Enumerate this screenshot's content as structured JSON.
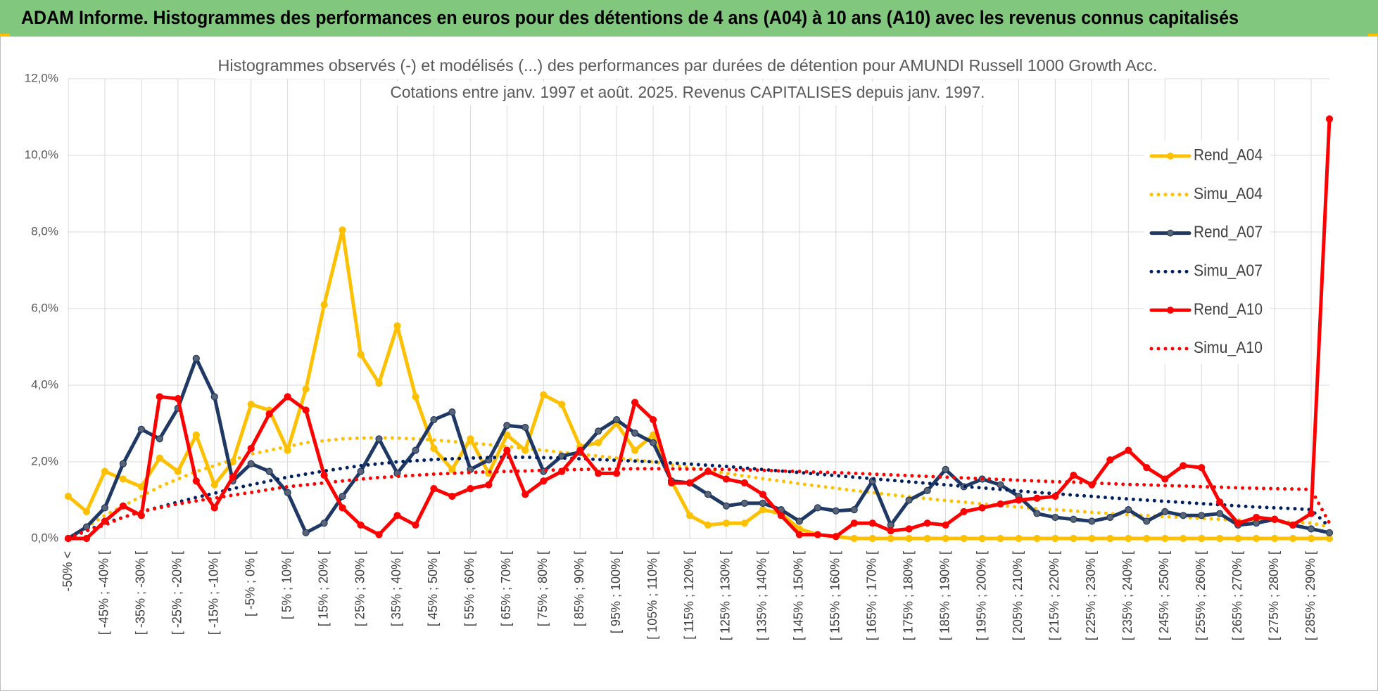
{
  "header": {
    "title": "ADAM Informe. Histogrammes des performances en euros pour des détentions de 4 ans (A04) à 10 ans (A10) avec les revenus connus capitalisés"
  },
  "chart_data": {
    "type": "line",
    "title": "Histogrammes observés (-) et modélisés (...) des performances par durées de détention pour AMUNDI Russell 1000 Growth Acc.",
    "subtitle": "Cotations entre janv. 1997 et août. 2025. Revenus CAPITALISES depuis janv. 1997.",
    "categories": [
      "-50% <",
      null,
      "[ -45% ; -40% [",
      null,
      "[ -35% ; -30% [",
      null,
      "[ -25% ; -20% [",
      null,
      "[ -15% ; -10% [",
      null,
      "[ -5% ; 0% [",
      null,
      "[ 5% ; 10% [",
      null,
      "[ 15% ; 20% [",
      null,
      "[ 25% ; 30% [",
      null,
      "[ 35% ; 40% [",
      null,
      "[ 45% ; 50% [",
      null,
      "[ 55% ; 60% [",
      null,
      "[ 65% ; 70% [",
      null,
      "[ 75% ; 80% [",
      null,
      "[ 85% ; 90% [",
      null,
      "[ 95% ; 100% [",
      null,
      "[ 105% ; 110% [",
      null,
      "[ 115% ; 120% [",
      null,
      "[ 125% ; 130% [",
      null,
      "[ 135% ; 140% [",
      null,
      "[ 145% ; 150% [",
      null,
      "[ 155% ; 160% [",
      null,
      "[ 165% ; 170% [",
      null,
      "[ 175% ; 180% [",
      null,
      "[ 185% ; 190% [",
      null,
      "[ 195% ; 200% [",
      null,
      "[ 205% ; 210% [",
      null,
      "[ 215% ; 220% [",
      null,
      "[ 225% ; 230% [",
      null,
      "[ 235% ; 240% [",
      null,
      "[ 245% ; 250% [",
      null,
      "[ 255% ; 260% [",
      null,
      "[ 265% ; 270% [",
      null,
      "[ 275% ; 280% [",
      null,
      "[ 285% ; 290% [",
      null
    ],
    "ylim": [
      0,
      12
    ],
    "yticks": [
      {
        "value": 0,
        "label": "0,0%"
      },
      {
        "value": 2,
        "label": "2,0%"
      },
      {
        "value": 4,
        "label": "4,0%"
      },
      {
        "value": 6,
        "label": "6,0%"
      },
      {
        "value": 8,
        "label": "8,0%"
      },
      {
        "value": 10,
        "label": "10,0%"
      },
      {
        "value": 12,
        "label": "12,0%"
      }
    ],
    "grid": true,
    "legend": "right",
    "series": [
      {
        "name": "Rend_A04",
        "color": "#FFC000",
        "marker_color": "#FFC000",
        "style": "solid",
        "markers": true,
        "values": [
          1.1,
          0.7,
          1.75,
          1.55,
          1.35,
          2.1,
          1.75,
          2.7,
          1.4,
          2.0,
          3.5,
          3.35,
          2.3,
          3.9,
          6.1,
          8.05,
          4.8,
          4.05,
          5.55,
          3.7,
          2.35,
          1.8,
          2.6,
          1.7,
          2.7,
          2.3,
          3.75,
          3.5,
          2.4,
          2.5,
          3.0,
          2.3,
          2.7,
          1.5,
          0.6,
          0.35,
          0.4,
          0.4,
          0.75,
          0.65,
          0.25,
          0.1,
          0.05,
          0,
          0,
          0,
          0,
          0,
          0,
          0,
          0,
          0,
          0,
          0,
          0,
          0,
          0,
          0,
          0,
          0,
          0,
          0,
          0,
          0,
          0,
          0,
          0,
          0,
          0,
          0
        ]
      },
      {
        "name": "Simu_A04",
        "color": "#FFC000",
        "style": "dotted",
        "markers": false,
        "values": [
          0,
          0.3,
          0.6,
          0.85,
          1.1,
          1.35,
          1.55,
          1.75,
          1.9,
          2.05,
          2.2,
          2.3,
          2.4,
          2.5,
          2.55,
          2.6,
          2.62,
          2.63,
          2.62,
          2.6,
          2.57,
          2.53,
          2.49,
          2.45,
          2.4,
          2.35,
          2.3,
          2.25,
          2.2,
          2.15,
          2.1,
          2.05,
          2.0,
          1.92,
          1.85,
          1.78,
          1.7,
          1.63,
          1.56,
          1.5,
          1.43,
          1.37,
          1.31,
          1.25,
          1.2,
          1.14,
          1.09,
          1.04,
          0.99,
          0.95,
          0.9,
          0.86,
          0.82,
          0.78,
          0.75,
          0.72,
          0.68,
          0.65,
          0.62,
          0.6,
          0.57,
          0.55,
          0.52,
          0.5,
          0.48,
          0.46,
          0.44,
          0.42,
          0.4,
          0.3
        ]
      },
      {
        "name": "Rend_A07",
        "color": "#1F3864",
        "marker_color": "#5A6472",
        "style": "solid",
        "markers": true,
        "values": [
          0,
          0.3,
          0.8,
          1.95,
          2.85,
          2.6,
          3.4,
          4.7,
          3.7,
          1.5,
          1.95,
          1.75,
          1.2,
          0.15,
          0.4,
          1.1,
          1.75,
          2.6,
          1.7,
          2.3,
          3.1,
          3.3,
          1.8,
          2.05,
          2.95,
          2.9,
          1.75,
          2.15,
          2.25,
          2.8,
          3.1,
          2.75,
          2.5,
          1.5,
          1.45,
          1.15,
          0.85,
          0.92,
          0.92,
          0.75,
          0.45,
          0.8,
          0.72,
          0.75,
          1.5,
          0.35,
          1.0,
          1.25,
          1.8,
          1.35,
          1.55,
          1.4,
          1.1,
          0.65,
          0.55,
          0.5,
          0.45,
          0.55,
          0.75,
          0.45,
          0.7,
          0.6,
          0.6,
          0.65,
          0.35,
          0.4,
          0.5,
          0.35,
          0.25,
          0.15
        ]
      },
      {
        "name": "Simu_A07",
        "color": "#002060",
        "style": "dotted",
        "markers": false,
        "values": [
          0,
          0.2,
          0.4,
          0.55,
          0.7,
          0.82,
          0.95,
          1.07,
          1.18,
          1.3,
          1.4,
          1.5,
          1.6,
          1.68,
          1.76,
          1.83,
          1.9,
          1.95,
          2.0,
          2.03,
          2.06,
          2.08,
          2.1,
          2.11,
          2.12,
          2.12,
          2.11,
          2.1,
          2.08,
          2.06,
          2.04,
          2.02,
          2.0,
          1.97,
          1.94,
          1.91,
          1.88,
          1.84,
          1.8,
          1.76,
          1.72,
          1.68,
          1.64,
          1.6,
          1.56,
          1.52,
          1.48,
          1.44,
          1.4,
          1.36,
          1.32,
          1.28,
          1.24,
          1.2,
          1.17,
          1.13,
          1.1,
          1.06,
          1.03,
          1.0,
          0.97,
          0.94,
          0.91,
          0.88,
          0.85,
          0.82,
          0.8,
          0.78,
          0.75,
          0.3
        ]
      },
      {
        "name": "Rend_A10",
        "color": "#FF0000",
        "marker_color": "#FF0000",
        "style": "solid",
        "markers": true,
        "values": [
          0,
          0,
          0.45,
          0.85,
          0.6,
          3.7,
          3.65,
          1.5,
          0.8,
          1.6,
          2.35,
          3.25,
          3.7,
          3.35,
          1.65,
          0.8,
          0.35,
          0.1,
          0.6,
          0.35,
          1.3,
          1.1,
          1.3,
          1.4,
          2.3,
          1.15,
          1.5,
          1.75,
          2.3,
          1.7,
          1.7,
          3.55,
          3.1,
          1.45,
          1.45,
          1.75,
          1.55,
          1.45,
          1.15,
          0.6,
          0.1,
          0.1,
          0.05,
          0.4,
          0.4,
          0.2,
          0.25,
          0.4,
          0.35,
          0.7,
          0.8,
          0.9,
          1.0,
          1.05,
          1.1,
          1.65,
          1.4,
          2.05,
          2.3,
          1.85,
          1.55,
          1.9,
          1.85,
          0.95,
          0.4,
          0.55,
          0.5,
          0.35,
          0.65,
          10.95
        ]
      },
      {
        "name": "Simu_A10",
        "color": "#FF0000",
        "style": "dotted",
        "markers": false,
        "values": [
          0,
          0.2,
          0.35,
          0.55,
          0.7,
          0.8,
          0.9,
          0.98,
          1.05,
          1.13,
          1.2,
          1.28,
          1.35,
          1.4,
          1.45,
          1.5,
          1.55,
          1.59,
          1.62,
          1.65,
          1.68,
          1.7,
          1.72,
          1.74,
          1.75,
          1.76,
          1.78,
          1.79,
          1.8,
          1.81,
          1.81,
          1.82,
          1.82,
          1.82,
          1.81,
          1.81,
          1.8,
          1.79,
          1.78,
          1.76,
          1.75,
          1.73,
          1.72,
          1.7,
          1.68,
          1.66,
          1.64,
          1.62,
          1.6,
          1.58,
          1.56,
          1.54,
          1.52,
          1.5,
          1.48,
          1.47,
          1.45,
          1.43,
          1.41,
          1.4,
          1.38,
          1.37,
          1.35,
          1.34,
          1.32,
          1.31,
          1.3,
          1.29,
          1.28,
          0.4
        ]
      }
    ]
  }
}
